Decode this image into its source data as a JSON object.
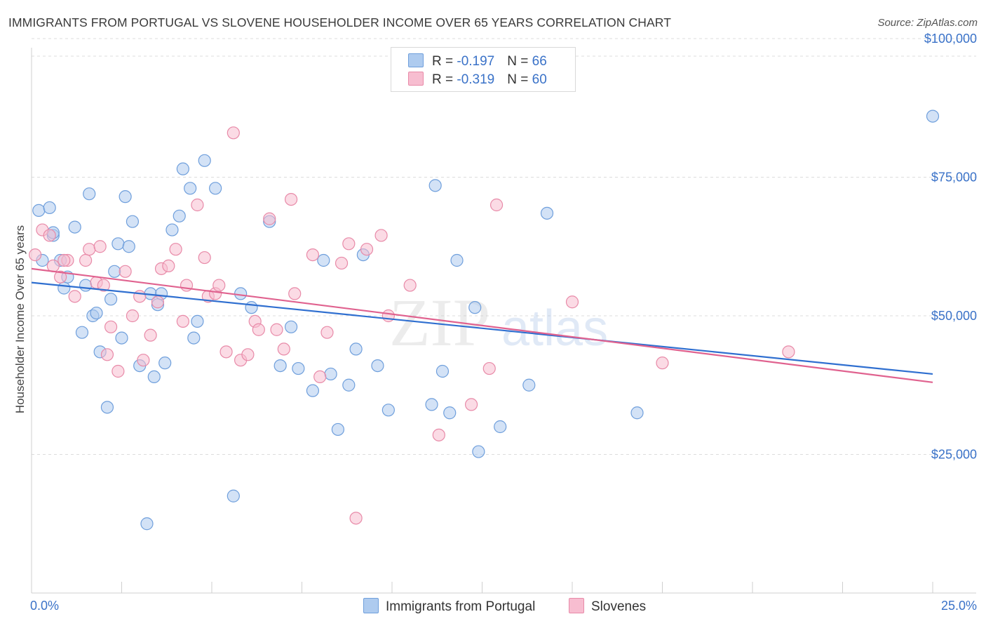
{
  "title": "IMMIGRANTS FROM PORTUGAL VS SLOVENE HOUSEHOLDER INCOME OVER 65 YEARS CORRELATION CHART",
  "source": "Source: ZipAtlas.com",
  "watermark": {
    "zip": "ZIP",
    "atlas": "atlas"
  },
  "legend": {
    "rows": [
      {
        "r_label": "R = ",
        "r_value": "-0.197",
        "n_label": "N = ",
        "n_value": "66"
      },
      {
        "r_label": "R = ",
        "r_value": "-0.319",
        "n_label": "N = ",
        "n_value": "60"
      }
    ]
  },
  "bottom_legend": {
    "series1": "Immigrants from Portugal",
    "series2": "Slovenes"
  },
  "colors": {
    "series1_fill": "#aecbef",
    "series1_stroke": "#6f9fdc",
    "series1_line": "#2f6fd0",
    "series2_fill": "#f7bdd0",
    "series2_stroke": "#e88aa8",
    "series2_line": "#e0628f",
    "grid": "#dcdcdc",
    "accent": "#3a72c8"
  },
  "chart_data": {
    "type": "scatter",
    "title": "IMMIGRANTS FROM PORTUGAL VS SLOVENE HOUSEHOLDER INCOME OVER 65 YEARS CORRELATION CHART",
    "xlabel": "",
    "ylabel": "Householder Income Over 65 years",
    "xlim": [
      0,
      25
    ],
    "ylim": [
      0,
      100000
    ],
    "x_tick_labels": [
      "0.0%",
      "25.0%"
    ],
    "y_ticks": [
      25000,
      50000,
      75000,
      100000
    ],
    "y_tick_labels": [
      "$25,000",
      "$50,000",
      "$75,000",
      "$100,000"
    ],
    "series": [
      {
        "name": "Immigrants from Portugal",
        "R": -0.197,
        "N": 66,
        "trend": {
          "x": [
            0,
            25
          ],
          "y": [
            56000,
            39500
          ]
        },
        "points": [
          [
            0.2,
            69000
          ],
          [
            0.3,
            60000
          ],
          [
            0.5,
            69500
          ],
          [
            0.6,
            64500
          ],
          [
            0.8,
            60000
          ],
          [
            0.9,
            55000
          ],
          [
            1.0,
            57000
          ],
          [
            1.2,
            66000
          ],
          [
            1.4,
            47000
          ],
          [
            1.5,
            55500
          ],
          [
            1.6,
            72000
          ],
          [
            1.7,
            50000
          ],
          [
            1.8,
            50500
          ],
          [
            1.9,
            43500
          ],
          [
            2.1,
            33500
          ],
          [
            2.2,
            53000
          ],
          [
            2.3,
            58000
          ],
          [
            2.4,
            63000
          ],
          [
            2.5,
            46000
          ],
          [
            2.6,
            71500
          ],
          [
            2.7,
            62500
          ],
          [
            2.8,
            67000
          ],
          [
            3.0,
            41000
          ],
          [
            3.2,
            12500
          ],
          [
            3.3,
            54000
          ],
          [
            3.4,
            39000
          ],
          [
            3.5,
            52000
          ],
          [
            3.6,
            54000
          ],
          [
            3.7,
            41500
          ],
          [
            3.9,
            65500
          ],
          [
            4.1,
            68000
          ],
          [
            4.2,
            76500
          ],
          [
            4.4,
            73000
          ],
          [
            4.5,
            46000
          ],
          [
            4.6,
            49000
          ],
          [
            4.8,
            78000
          ],
          [
            5.1,
            73000
          ],
          [
            5.6,
            17500
          ],
          [
            5.8,
            54000
          ],
          [
            6.1,
            51500
          ],
          [
            6.6,
            67000
          ],
          [
            6.9,
            41000
          ],
          [
            7.2,
            48000
          ],
          [
            7.4,
            40500
          ],
          [
            7.8,
            36500
          ],
          [
            8.1,
            60000
          ],
          [
            8.3,
            39500
          ],
          [
            8.5,
            29500
          ],
          [
            8.8,
            37500
          ],
          [
            9.0,
            44000
          ],
          [
            9.2,
            61000
          ],
          [
            9.6,
            41000
          ],
          [
            9.9,
            33000
          ],
          [
            11.1,
            34000
          ],
          [
            11.4,
            40000
          ],
          [
            11.6,
            32500
          ],
          [
            11.2,
            73500
          ],
          [
            11.8,
            60000
          ],
          [
            12.3,
            51500
          ],
          [
            12.4,
            25500
          ],
          [
            13.0,
            30000
          ],
          [
            13.8,
            37500
          ],
          [
            14.3,
            68500
          ],
          [
            16.8,
            32500
          ],
          [
            25.0,
            86000
          ],
          [
            0.6,
            65000
          ]
        ]
      },
      {
        "name": "Slovenes",
        "R": -0.319,
        "N": 60,
        "trend": {
          "x": [
            0,
            25
          ],
          "y": [
            58500,
            38000
          ]
        },
        "points": [
          [
            0.1,
            61000
          ],
          [
            0.3,
            65500
          ],
          [
            0.5,
            64500
          ],
          [
            0.6,
            59000
          ],
          [
            0.8,
            57000
          ],
          [
            1.0,
            60000
          ],
          [
            1.2,
            53500
          ],
          [
            1.5,
            60000
          ],
          [
            1.6,
            62000
          ],
          [
            1.8,
            56000
          ],
          [
            2.0,
            55500
          ],
          [
            2.2,
            48000
          ],
          [
            2.4,
            40000
          ],
          [
            2.6,
            58000
          ],
          [
            2.8,
            50000
          ],
          [
            3.0,
            53500
          ],
          [
            3.1,
            42000
          ],
          [
            3.3,
            46500
          ],
          [
            3.5,
            52500
          ],
          [
            3.6,
            58500
          ],
          [
            3.8,
            59000
          ],
          [
            4.0,
            62000
          ],
          [
            4.2,
            49000
          ],
          [
            4.3,
            55500
          ],
          [
            4.6,
            70000
          ],
          [
            4.8,
            60500
          ],
          [
            4.9,
            53500
          ],
          [
            5.1,
            54000
          ],
          [
            5.2,
            55500
          ],
          [
            5.4,
            43500
          ],
          [
            5.6,
            83000
          ],
          [
            5.8,
            42000
          ],
          [
            6.0,
            43000
          ],
          [
            6.2,
            49000
          ],
          [
            6.3,
            47500
          ],
          [
            6.6,
            67500
          ],
          [
            6.8,
            47500
          ],
          [
            7.0,
            44000
          ],
          [
            7.2,
            71000
          ],
          [
            7.3,
            54000
          ],
          [
            7.8,
            61000
          ],
          [
            8.0,
            39000
          ],
          [
            8.2,
            47000
          ],
          [
            8.6,
            59500
          ],
          [
            8.8,
            63000
          ],
          [
            9.0,
            13500
          ],
          [
            9.3,
            62000
          ],
          [
            9.7,
            64500
          ],
          [
            9.9,
            50000
          ],
          [
            10.5,
            55500
          ],
          [
            11.3,
            28500
          ],
          [
            12.2,
            34000
          ],
          [
            12.7,
            40500
          ],
          [
            12.9,
            70000
          ],
          [
            15.0,
            52500
          ],
          [
            17.5,
            41500
          ],
          [
            21.0,
            43500
          ],
          [
            1.9,
            62500
          ],
          [
            0.9,
            60000
          ],
          [
            2.1,
            43000
          ]
        ]
      }
    ]
  }
}
